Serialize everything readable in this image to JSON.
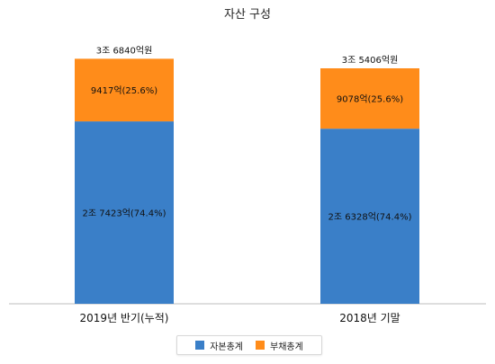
{
  "chart_data": {
    "type": "bar",
    "stacked": true,
    "title": "자산 구성",
    "categories": [
      "2019년 반기(누적)",
      "2018년 기말"
    ],
    "series": [
      {
        "name": "자본총계",
        "color": "#3a7fc8",
        "values": [
          27423,
          26328
        ],
        "labels": [
          "2조 7423억(74.4%)",
          "2조 6328억(74.4%)"
        ]
      },
      {
        "name": "부채총계",
        "color": "#ff8c1a",
        "values": [
          9417,
          9078
        ],
        "labels": [
          "9417억(25.6%)",
          "9078억(25.6%)"
        ]
      }
    ],
    "totals": [
      36840,
      35406
    ],
    "total_labels": [
      "3조 6840억원",
      "3조 5406억원"
    ],
    "value_unit": "억원",
    "ylim": [
      0,
      40000
    ],
    "grid": false,
    "legend_position": "bottom"
  }
}
